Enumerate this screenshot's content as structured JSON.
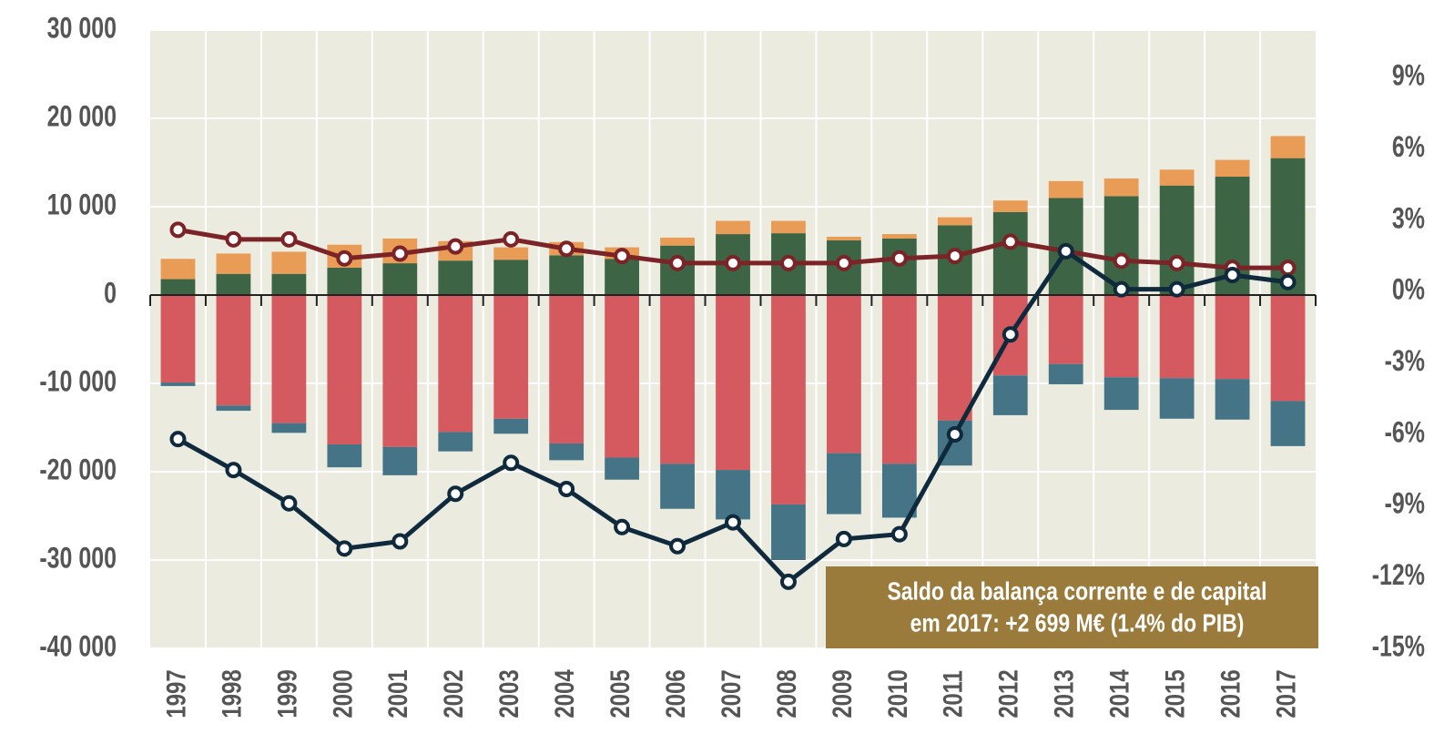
{
  "chart_data": {
    "type": "bar",
    "categories": [
      "1997",
      "1998",
      "1999",
      "2000",
      "2001",
      "2002",
      "2003",
      "2004",
      "2005",
      "2006",
      "2007",
      "2008",
      "2009",
      "2010",
      "2011",
      "2012",
      "2013",
      "2014",
      "2015",
      "2016",
      "2017"
    ],
    "series": [
      {
        "color": "#3d6444",
        "values": [
          1.8,
          2.4,
          2.4,
          3.1,
          3.6,
          3.9,
          4.0,
          4.5,
          4.1,
          5.6,
          6.9,
          7.0,
          6.2,
          6.4,
          7.9,
          9.4,
          11.0,
          11.2,
          12.4,
          13.4,
          15.5
        ]
      },
      {
        "color": "#e89c56",
        "values": [
          2.3,
          2.3,
          2.5,
          2.6,
          2.8,
          2.2,
          1.4,
          1.5,
          1.3,
          0.9,
          1.5,
          1.4,
          0.4,
          0.5,
          0.9,
          1.3,
          1.9,
          2.0,
          1.8,
          1.9,
          2.5
        ]
      },
      {
        "color": "#d45a60",
        "values": [
          -9.9,
          -12.5,
          -14.5,
          -16.9,
          -17.2,
          -15.5,
          -14.0,
          -16.8,
          -18.4,
          -19.1,
          -19.8,
          -23.7,
          -17.9,
          -19.1,
          -14.2,
          -9.1,
          -7.8,
          -9.3,
          -9.4,
          -9.5,
          -12.0
        ]
      },
      {
        "color": "#467487",
        "values": [
          -0.4,
          -0.6,
          -1.1,
          -2.6,
          -3.2,
          -2.2,
          -1.7,
          -1.9,
          -2.5,
          -5.1,
          -5.6,
          -6.3,
          -6.9,
          -6.1,
          -5.1,
          -4.5,
          -2.3,
          -3.7,
          -4.6,
          -4.6,
          -5.1
        ]
      },
      {
        "type": "line",
        "axis": "y2",
        "color": "#7b2326",
        "values": [
          2.6,
          2.2,
          2.2,
          1.4,
          1.6,
          1.9,
          2.2,
          1.8,
          1.5,
          1.2,
          1.2,
          1.2,
          1.2,
          1.4,
          1.5,
          2.1,
          1.7,
          1.3,
          1.2,
          1.0,
          1.0
        ]
      },
      {
        "type": "line",
        "axis": "y2",
        "color": "#0f2a3c",
        "values": [
          -6.2,
          -7.5,
          -8.9,
          -10.8,
          -10.5,
          -8.5,
          -7.2,
          -8.3,
          -9.9,
          -10.7,
          -9.7,
          -12.2,
          -10.4,
          -10.2,
          -6.0,
          -1.8,
          1.7,
          0.1,
          0.1,
          0.7,
          0.4
        ]
      }
    ],
    "ylim": [
      -40000,
      30000
    ],
    "yticks": [
      {
        "value": -40000,
        "label": "-40 000"
      },
      {
        "value": -30000,
        "label": "-30 000"
      },
      {
        "value": -20000,
        "label": "-20 000"
      },
      {
        "value": -10000,
        "label": "-10 000"
      },
      0,
      {
        "value": 10000,
        "label": "10 000"
      },
      {
        "value": 20000,
        "label": "20 000"
      },
      {
        "value": 30000,
        "label": "30 000"
      }
    ],
    "value_unit": 1000,
    "y2lim": [
      -15,
      11
    ],
    "y2ticks": [
      {
        "value": -15,
        "label": "-15%"
      },
      {
        "value": -12,
        "label": "-12%"
      },
      {
        "value": -9,
        "label": "-9%"
      },
      {
        "value": -6,
        "label": "-6%"
      },
      {
        "value": -3,
        "label": "-3%"
      },
      {
        "value": 0,
        "label": "0%"
      },
      {
        "value": 3,
        "label": "3%"
      },
      {
        "value": 6,
        "label": "6%"
      },
      {
        "value": 9,
        "label": "9%"
      }
    ],
    "grid": true,
    "annotation": [
      "Saldo da balança corrente e de capital",
      "em 2017:  +2 699 M€ (1.4% do PIB)"
    ],
    "annotation_color": "#9a7b3b"
  }
}
